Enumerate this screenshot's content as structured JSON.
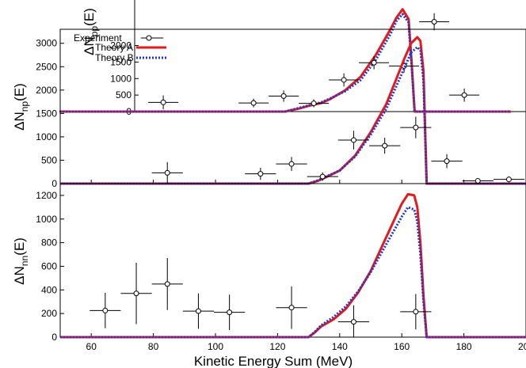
{
  "chart_data": [
    {
      "type": "line",
      "panel": "pp",
      "ylabel_main": "ΔN",
      "ylabel_sub": "pp",
      "ylabel_tail": "(E)",
      "xlim": [
        50,
        200
      ],
      "ylim": [
        0,
        3500
      ],
      "yticks": [
        0,
        500,
        1000,
        1500,
        2000
      ],
      "x_shift": 25,
      "legend": {
        "position": "top-left",
        "entries": [
          {
            "label": "Experiment",
            "kind": "points",
            "color": "#000000"
          },
          {
            "label": "Theory A",
            "kind": "solid",
            "color": "#e31a1c"
          },
          {
            "label": "Theory B",
            "kind": "dotted",
            "color": "#1f35d8"
          }
        ]
      },
      "points": [
        {
          "x": 84.5,
          "y": 280,
          "xerr": 5,
          "yerr": 210
        },
        {
          "x": 114.5,
          "y": 260,
          "xerr": 5,
          "yerr": 130
        },
        {
          "x": 124.5,
          "y": 470,
          "xerr": 5,
          "yerr": 170
        },
        {
          "x": 134.5,
          "y": 250,
          "xerr": 5,
          "yerr": 120
        },
        {
          "x": 144.5,
          "y": 960,
          "xerr": 5,
          "yerr": 200
        },
        {
          "x": 154.5,
          "y": 1480,
          "xerr": 5,
          "yerr": 200
        },
        {
          "x": 164.5,
          "y": 1380,
          "xerr": 5,
          "yerr": 200
        },
        {
          "x": 174.5,
          "y": 2720,
          "xerr": 5,
          "yerr": 260
        },
        {
          "x": 184.5,
          "y": 500,
          "xerr": 5,
          "yerr": 200
        }
      ],
      "series": [
        {
          "name": "Theory A",
          "x": [
            50,
            125,
            130,
            133,
            137,
            140,
            145,
            150,
            155,
            160,
            162,
            164,
            166,
            167,
            168,
            169,
            200
          ],
          "y": [
            0,
            0,
            100,
            180,
            260,
            380,
            650,
            1050,
            1700,
            2500,
            2850,
            3100,
            2800,
            1500,
            0,
            0,
            0
          ]
        },
        {
          "name": "Theory B",
          "x": [
            50,
            125,
            130,
            133,
            137,
            140,
            145,
            150,
            155,
            160,
            162,
            164,
            166,
            167,
            168,
            169,
            200
          ],
          "y": [
            0,
            0,
            120,
            190,
            280,
            400,
            620,
            950,
            1550,
            2350,
            2750,
            2950,
            2700,
            1400,
            0,
            0,
            0
          ]
        }
      ]
    },
    {
      "type": "line",
      "panel": "np",
      "ylabel_main": "ΔN",
      "ylabel_sub": "np",
      "ylabel_tail": "(E)",
      "xlim": [
        50,
        200
      ],
      "ylim": [
        0,
        3300
      ],
      "yticks": [
        0,
        500,
        1000,
        1500,
        2000,
        2500,
        3000
      ],
      "points": [
        {
          "x": 84.5,
          "y": 230,
          "xerr": 5,
          "yerr": 230
        },
        {
          "x": 114.5,
          "y": 210,
          "xerr": 5,
          "yerr": 130
        },
        {
          "x": 124.5,
          "y": 420,
          "xerr": 5,
          "yerr": 150
        },
        {
          "x": 134.5,
          "y": 150,
          "xerr": 5,
          "yerr": 90
        },
        {
          "x": 144.5,
          "y": 930,
          "xerr": 5,
          "yerr": 200
        },
        {
          "x": 154.5,
          "y": 810,
          "xerr": 5,
          "yerr": 170
        },
        {
          "x": 164.5,
          "y": 1200,
          "xerr": 5,
          "yerr": 230
        },
        {
          "x": 174.5,
          "y": 480,
          "xerr": 5,
          "yerr": 150
        },
        {
          "x": 184.5,
          "y": 60,
          "xerr": 5,
          "yerr": 40
        },
        {
          "x": 194.5,
          "y": 90,
          "xerr": 5,
          "yerr": 60
        }
      ],
      "series": [
        {
          "name": "Theory A",
          "x": [
            50,
            130,
            133,
            136,
            140,
            145,
            150,
            155,
            158,
            161,
            163,
            165,
            166,
            167,
            168,
            200
          ],
          "y": [
            0,
            0,
            60,
            150,
            280,
            600,
            1100,
            1700,
            2200,
            2700,
            3000,
            3130,
            3050,
            2400,
            0,
            0
          ]
        },
        {
          "name": "Theory B",
          "x": [
            50,
            130,
            133,
            136,
            140,
            145,
            150,
            155,
            158,
            161,
            163,
            165,
            166,
            167,
            168,
            200
          ],
          "y": [
            0,
            0,
            70,
            160,
            280,
            580,
            1050,
            1600,
            2050,
            2500,
            2800,
            2920,
            2850,
            2200,
            0,
            0
          ]
        }
      ]
    },
    {
      "type": "line",
      "panel": "nn",
      "ylabel_main": "ΔN",
      "ylabel_sub": "nn",
      "ylabel_tail": "(E)",
      "xlabel": "Kinetic Energy Sum (MeV)",
      "xlim": [
        50,
        200
      ],
      "ylim": [
        0,
        1300
      ],
      "xticks": [
        60,
        80,
        100,
        120,
        140,
        160,
        180,
        200
      ],
      "yticks": [
        0,
        200,
        400,
        600,
        800,
        1000,
        1200
      ],
      "points": [
        {
          "x": 64.5,
          "y": 225,
          "xerr": 5,
          "yerr": 150
        },
        {
          "x": 74.5,
          "y": 370,
          "xerr": 5,
          "yerr": 260
        },
        {
          "x": 84.5,
          "y": 450,
          "xerr": 5,
          "yerr": 220
        },
        {
          "x": 94.5,
          "y": 220,
          "xerr": 5,
          "yerr": 150
        },
        {
          "x": 104.5,
          "y": 210,
          "xerr": 5,
          "yerr": 150
        },
        {
          "x": 124.5,
          "y": 250,
          "xerr": 5,
          "yerr": 180
        },
        {
          "x": 144.5,
          "y": 130,
          "xerr": 5,
          "yerr": 140
        },
        {
          "x": 164.5,
          "y": 215,
          "xerr": 5,
          "yerr": 150
        }
      ],
      "series": [
        {
          "name": "Theory A",
          "x": [
            50,
            130,
            132,
            134,
            138,
            142,
            146,
            150,
            154,
            157,
            160,
            162,
            164,
            165,
            166,
            167,
            168,
            200
          ],
          "y": [
            0,
            0,
            40,
            90,
            150,
            240,
            380,
            560,
            790,
            960,
            1130,
            1210,
            1200,
            1100,
            800,
            350,
            0,
            0
          ]
        },
        {
          "name": "Theory B",
          "x": [
            50,
            130,
            132,
            134,
            138,
            142,
            146,
            150,
            154,
            157,
            160,
            162,
            164,
            165,
            166,
            167,
            168,
            200
          ],
          "y": [
            0,
            0,
            45,
            100,
            170,
            260,
            390,
            550,
            740,
            880,
            1020,
            1100,
            1080,
            980,
            700,
            300,
            0,
            0
          ]
        }
      ]
    }
  ]
}
